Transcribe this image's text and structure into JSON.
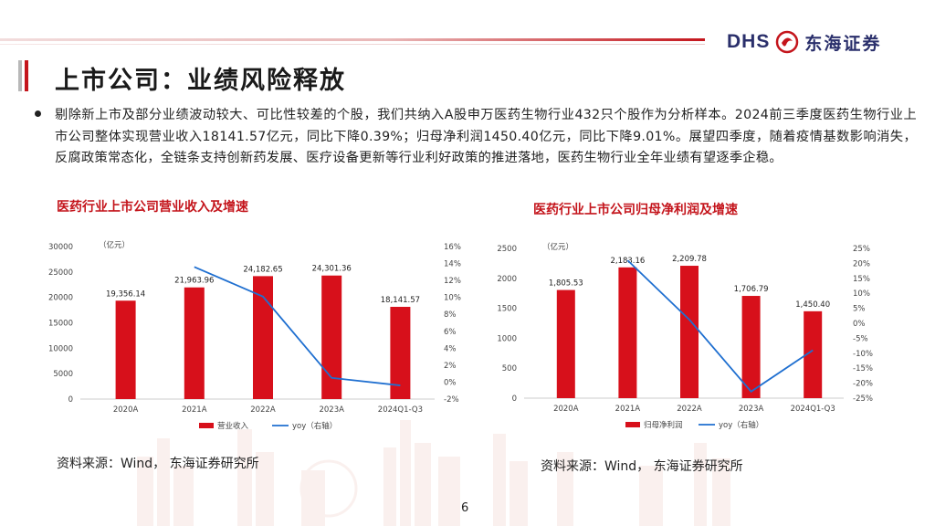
{
  "header": {
    "logo_text": "DHS",
    "logo_cn": "东海证券",
    "title": "上市公司：业绩风险释放"
  },
  "body": {
    "paragraph": "剔除新上市及部分业绩波动较大、可比性较差的个股，我们共纳入A股申万医药生物行业432只个股作为分析样本。2024前三季度医药生物行业上市公司整体实现营业收入18141.57亿元，同比下降0.39%；归母净利润1450.40亿元，同比下降9.01%。展望四季度，随着疫情基数影响消失，反腐政策常态化，全链条支持创新药发展、医疗设备更新等行业利好政策的推进落地，医药生物行业全年业绩有望逐季企稳。"
  },
  "charts": {
    "left": {
      "title": "医药行业上市公司营业收入及增速",
      "source": "资料来源：Wind， 东海证券研究所"
    },
    "right": {
      "title": "医药行业上市公司归母净利润及增速",
      "source": "资料来源：Wind， 东海证券研究所"
    }
  },
  "chart_data": [
    {
      "type": "bar",
      "title": "医药行业上市公司营业收入及增速",
      "categories": [
        "2020A",
        "2021A",
        "2022A",
        "2023A",
        "2024Q1-Q3"
      ],
      "unit_label": "（亿元）",
      "series": [
        {
          "name": "营业收入",
          "type": "bar",
          "axis": "left",
          "values": [
            19356.14,
            21963.96,
            24182.65,
            24301.36,
            18141.57
          ],
          "labels": [
            "19,356.14",
            "21,963.96",
            "24,182.65",
            "24,301.36",
            "18,141.57"
          ]
        },
        {
          "name": "yoy（右轴）",
          "type": "line",
          "axis": "right",
          "values": [
            null,
            13.6,
            10.1,
            0.5,
            -0.39
          ]
        }
      ],
      "left_axis": {
        "min": 0,
        "max": 30000,
        "ticks": [
          "0",
          "5000",
          "10000",
          "15000",
          "20000",
          "25000",
          "30000"
        ]
      },
      "right_axis": {
        "min": -2,
        "max": 16,
        "ticks": [
          "-2%",
          "0%",
          "2%",
          "4%",
          "6%",
          "8%",
          "10%",
          "12%",
          "14%",
          "16%"
        ]
      },
      "colors": {
        "bar": "#d7101b",
        "line": "#1f6fd0"
      }
    },
    {
      "type": "bar",
      "title": "医药行业上市公司归母净利润及增速",
      "categories": [
        "2020A",
        "2021A",
        "2022A",
        "2023A",
        "2024Q1-Q3"
      ],
      "unit_label": "（亿元）",
      "series": [
        {
          "name": "归母净利润",
          "type": "bar",
          "axis": "left",
          "values": [
            1805.53,
            2183.16,
            2209.78,
            1706.79,
            1450.4
          ],
          "labels": [
            "1,805.53",
            "2,183.16",
            "2,209.78",
            "1,706.79",
            "1,450.40"
          ]
        },
        {
          "name": "yoy（右轴）",
          "type": "line",
          "axis": "right",
          "values": [
            null,
            21.0,
            1.2,
            -22.8,
            -9.01
          ]
        }
      ],
      "left_axis": {
        "min": 0,
        "max": 2500,
        "ticks": [
          "0",
          "500",
          "1000",
          "1500",
          "2000",
          "2500"
        ]
      },
      "right_axis": {
        "min": -25,
        "max": 25,
        "ticks": [
          "-25%",
          "-20%",
          "-15%",
          "-10%",
          "-5%",
          "0%",
          "5%",
          "10%",
          "15%",
          "20%",
          "25%"
        ]
      },
      "colors": {
        "bar": "#d7101b",
        "line": "#1f6fd0"
      }
    }
  ],
  "footer": {
    "page": "6"
  }
}
